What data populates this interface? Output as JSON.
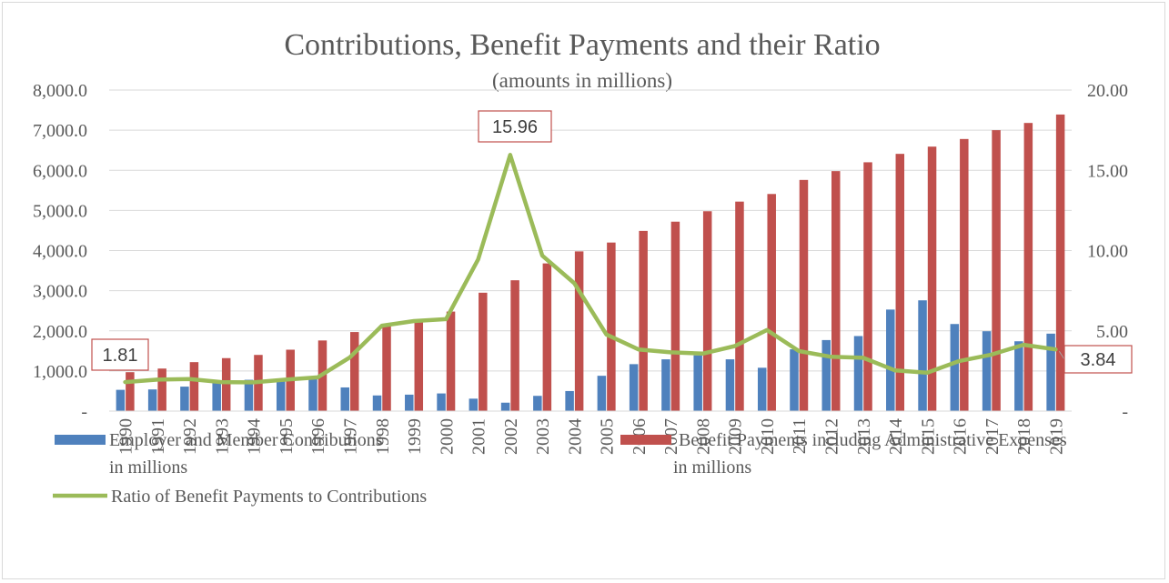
{
  "chart_data": {
    "type": "bar",
    "title": "Contributions, Benefit Payments and their Ratio",
    "subtitle": "(amounts in millions)",
    "categories": [
      "1990",
      "1991",
      "1992",
      "1993",
      "1994",
      "1995",
      "1996",
      "1997",
      "1998",
      "1999",
      "2000",
      "2001",
      "2002",
      "2003",
      "2004",
      "2005",
      "2006",
      "2007",
      "2008",
      "2009",
      "2010",
      "2011",
      "2012",
      "2013",
      "2014",
      "2015",
      "2016",
      "2017",
      "2018",
      "2019"
    ],
    "series": [
      {
        "name": "Employer and Member  Contributions in millions",
        "legend_lines": [
          "Employer and Member  Contributions",
          "in millions"
        ],
        "type": "bar",
        "axis": "left",
        "color": "#4f81bd",
        "values": [
          530,
          540,
          610,
          730,
          780,
          780,
          840,
          590,
          390,
          410,
          440,
          310,
          210,
          380,
          500,
          880,
          1170,
          1290,
          1390,
          1290,
          1080,
          1540,
          1770,
          1870,
          2530,
          2760,
          2170,
          1990,
          1740,
          1930
        ]
      },
      {
        "name": "Benefit Payments including Administrative Expenses in millions",
        "legend_lines": [
          "Benefit Payments including Administrative Expenses",
          "in millions"
        ],
        "type": "bar",
        "axis": "left",
        "color": "#c0504d",
        "values": [
          970,
          1060,
          1220,
          1320,
          1400,
          1530,
          1760,
          1970,
          2110,
          2230,
          2480,
          2950,
          3260,
          3680,
          3980,
          4200,
          4490,
          4720,
          4980,
          5220,
          5410,
          5760,
          5980,
          6200,
          6410,
          6590,
          6780,
          7000,
          7180,
          7390
        ]
      },
      {
        "name": "Ratio of Benefit Payments to Contributions",
        "legend_lines": [
          "Ratio of Benefit Payments to Contributions"
        ],
        "type": "line",
        "axis": "right",
        "color": "#9bbb59",
        "values": [
          1.81,
          1.96,
          2.0,
          1.81,
          1.79,
          1.96,
          2.1,
          3.34,
          5.32,
          5.61,
          5.73,
          9.45,
          15.96,
          9.68,
          7.96,
          4.77,
          3.84,
          3.66,
          3.58,
          4.05,
          5.05,
          3.74,
          3.38,
          3.32,
          2.53,
          2.39,
          3.12,
          3.52,
          4.13,
          3.84
        ]
      }
    ],
    "y_left": {
      "min": 0,
      "max": 8000,
      "ticks": [
        0,
        1000,
        2000,
        3000,
        4000,
        5000,
        6000,
        7000,
        8000
      ],
      "tick_labels": [
        "-",
        "1,000.0",
        "2,000.0",
        "3,000.0",
        "4,000.0",
        "5,000.0",
        "6,000.0",
        "7,000.0",
        "8,000.0"
      ]
    },
    "y_right": {
      "min": 0,
      "max": 20,
      "ticks": [
        0,
        5,
        10,
        15,
        20
      ],
      "tick_labels": [
        "-",
        "5.00",
        "10.00",
        "15.00",
        "20.00"
      ]
    },
    "annotations": [
      {
        "series": 2,
        "index": 0,
        "text": "1.81"
      },
      {
        "series": 2,
        "index": 12,
        "text": "15.96"
      },
      {
        "series": 2,
        "index": 29,
        "text": "3.84"
      }
    ],
    "grid": true,
    "legend_position": "bottom"
  }
}
